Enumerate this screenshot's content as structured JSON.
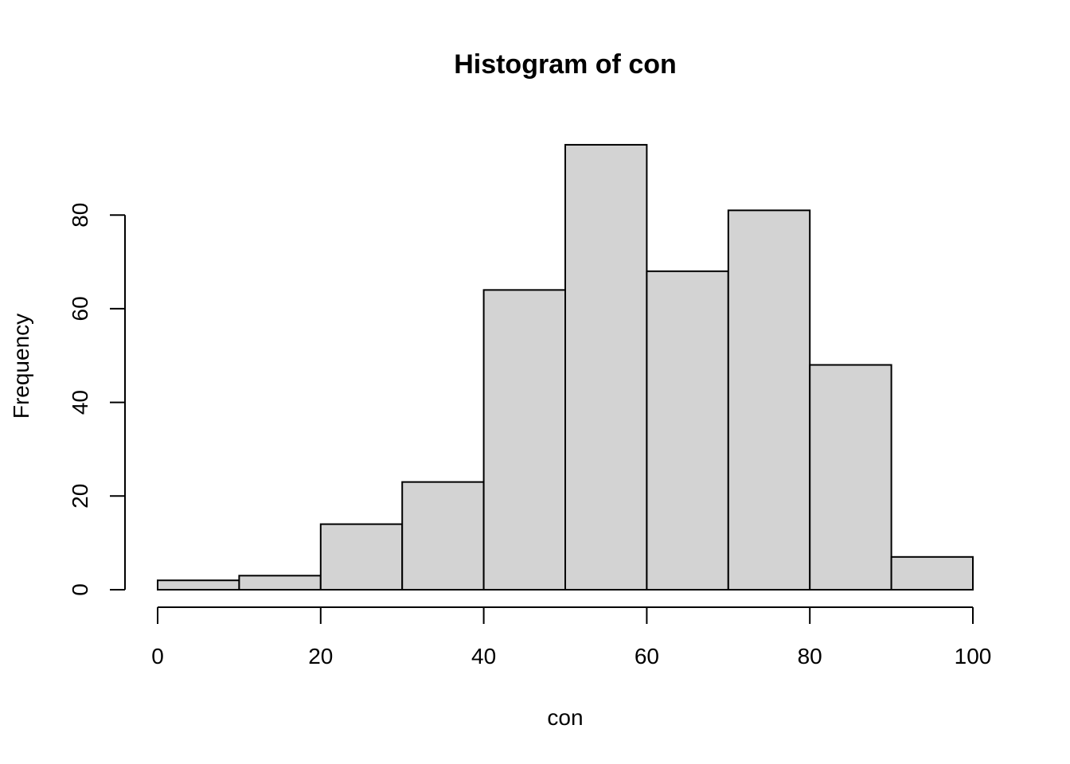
{
  "chart_data": {
    "type": "bar",
    "subtype": "histogram",
    "title": "Histogram of con",
    "xlabel": "con",
    "ylabel": "Frequency",
    "bins": [
      {
        "from": 0,
        "to": 10,
        "count": 2
      },
      {
        "from": 10,
        "to": 20,
        "count": 3
      },
      {
        "from": 20,
        "to": 30,
        "count": 14
      },
      {
        "from": 30,
        "to": 40,
        "count": 23
      },
      {
        "from": 40,
        "to": 50,
        "count": 64
      },
      {
        "from": 50,
        "to": 60,
        "count": 95
      },
      {
        "from": 60,
        "to": 70,
        "count": 68
      },
      {
        "from": 70,
        "to": 80,
        "count": 81
      },
      {
        "from": 80,
        "to": 90,
        "count": 48
      },
      {
        "from": 90,
        "to": 100,
        "count": 7
      }
    ],
    "xlim": [
      0,
      100
    ],
    "ylim": [
      0,
      95
    ],
    "xticks": [
      "0",
      "20",
      "40",
      "60",
      "80",
      "100"
    ],
    "yticks": [
      "0",
      "20",
      "40",
      "60",
      "80"
    ],
    "bar_color": "#d3d3d3",
    "grid": false,
    "legend": "none"
  }
}
